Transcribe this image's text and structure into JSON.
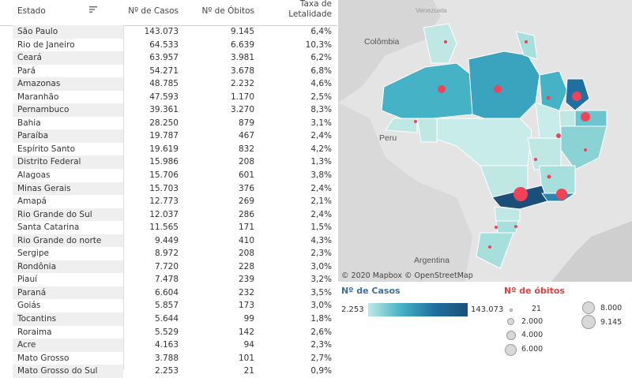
{
  "table": {
    "headers": {
      "estado": "Estado",
      "casos": "Nº de Casos",
      "obitos": "Nº de Óbitos",
      "taxa_l1": "Taxa de",
      "taxa_l2": "Letalidade"
    },
    "rows": [
      {
        "estado": "São Paulo",
        "casos": "143.073",
        "obitos": "9.145",
        "taxa": "6,4%"
      },
      {
        "estado": "Rio de Janeiro",
        "casos": "64.533",
        "obitos": "6.639",
        "taxa": "10,3%"
      },
      {
        "estado": "Ceará",
        "casos": "63.957",
        "obitos": "3.981",
        "taxa": "6,2%"
      },
      {
        "estado": "Pará",
        "casos": "54.271",
        "obitos": "3.678",
        "taxa": "6,8%"
      },
      {
        "estado": "Amazonas",
        "casos": "48.785",
        "obitos": "2.232",
        "taxa": "4,6%"
      },
      {
        "estado": "Maranhão",
        "casos": "47.593",
        "obitos": "1.170",
        "taxa": "2,5%"
      },
      {
        "estado": "Pernambuco",
        "casos": "39.361",
        "obitos": "3.270",
        "taxa": "8,3%"
      },
      {
        "estado": "Bahia",
        "casos": "28.250",
        "obitos": "879",
        "taxa": "3,1%"
      },
      {
        "estado": "Paraíba",
        "casos": "19.787",
        "obitos": "467",
        "taxa": "2,4%"
      },
      {
        "estado": "Espírito Santo",
        "casos": "19.619",
        "obitos": "832",
        "taxa": "4,2%"
      },
      {
        "estado": "Distrito Federal",
        "casos": "15.986",
        "obitos": "208",
        "taxa": "1,3%"
      },
      {
        "estado": "Alagoas",
        "casos": "15.706",
        "obitos": "601",
        "taxa": "3,8%"
      },
      {
        "estado": "Minas Gerais",
        "casos": "15.703",
        "obitos": "376",
        "taxa": "2,4%"
      },
      {
        "estado": "Amapá",
        "casos": "12.773",
        "obitos": "269",
        "taxa": "2,1%"
      },
      {
        "estado": "Rio Grande do Sul",
        "casos": "12.037",
        "obitos": "286",
        "taxa": "2,4%"
      },
      {
        "estado": "Santa Catarina",
        "casos": "11.565",
        "obitos": "171",
        "taxa": "1,5%"
      },
      {
        "estado": "Rio Grande do norte",
        "casos": "9.449",
        "obitos": "410",
        "taxa": "4,3%"
      },
      {
        "estado": "Sergipe",
        "casos": "8.972",
        "obitos": "208",
        "taxa": "2,3%"
      },
      {
        "estado": "Rondônia",
        "casos": "7.720",
        "obitos": "228",
        "taxa": "3,0%"
      },
      {
        "estado": "Piauí",
        "casos": "7.478",
        "obitos": "239",
        "taxa": "3,2%"
      },
      {
        "estado": "Paraná",
        "casos": "6.604",
        "obitos": "232",
        "taxa": "3,5%"
      },
      {
        "estado": "Goiás",
        "casos": "5.857",
        "obitos": "173",
        "taxa": "3,0%"
      },
      {
        "estado": "Tocantins",
        "casos": "5.644",
        "obitos": "99",
        "taxa": "1,8%"
      },
      {
        "estado": "Roraima",
        "casos": "5.529",
        "obitos": "142",
        "taxa": "2,6%"
      },
      {
        "estado": "Acre",
        "casos": "4.163",
        "obitos": "94",
        "taxa": "2,3%"
      },
      {
        "estado": "Mato Grosso",
        "casos": "3.788",
        "obitos": "101",
        "taxa": "2,7%"
      },
      {
        "estado": "Mato Grosso do Sul",
        "casos": "2.253",
        "obitos": "21",
        "taxa": "0,9%"
      }
    ]
  },
  "map": {
    "labels": {
      "colombia": "Colômbia",
      "venezuela": "Venezuela",
      "peru": "Peru",
      "argentina": "Argentina"
    },
    "attribution": "© 2020 Mapbox  © OpenStreetMap",
    "colors": {
      "low": "#bfe8e5",
      "mid": "#45b2c6",
      "high": "#1b4f7a",
      "bubble": "#f0435a"
    }
  },
  "legend": {
    "casos_title": "Nº de Casos",
    "casos_min": "2.253",
    "casos_max": "143.073",
    "obitos_title": "Nº de óbitos",
    "sizes": [
      "21",
      "2.000",
      "4.000",
      "6.000",
      "8.000",
      "9.145"
    ]
  }
}
